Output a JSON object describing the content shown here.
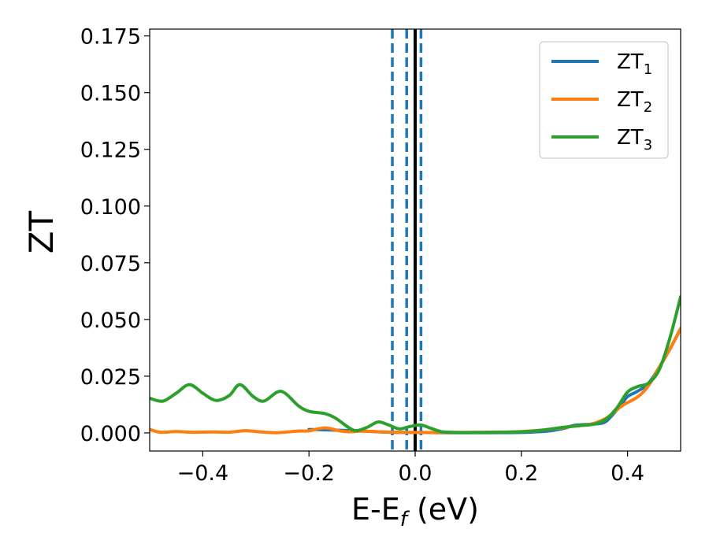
{
  "chart_data": {
    "type": "line",
    "title": "",
    "xlabel": {
      "main": "E-E",
      "sub": "f",
      "suffix": " (eV)"
    },
    "ylabel": "ZT",
    "xlim": [
      -0.5,
      0.5
    ],
    "ylim": [
      -0.008,
      0.178
    ],
    "grid": false,
    "legend_position": "top-right",
    "x_ticks": [
      -0.4,
      -0.2,
      0.0,
      0.2,
      0.4
    ],
    "x_tick_labels": [
      "−0.4",
      "−0.2",
      "0.0",
      "0.2",
      "0.4"
    ],
    "y_ticks": [
      0.0,
      0.025,
      0.05,
      0.075,
      0.1,
      0.125,
      0.15,
      0.175
    ],
    "y_tick_labels": [
      "0.000",
      "0.025",
      "0.050",
      "0.075",
      "0.100",
      "0.125",
      "0.150",
      "0.175"
    ],
    "vertical_lines": [
      {
        "x": -0.043,
        "style": "dashed",
        "color": "#1f77b4"
      },
      {
        "x": -0.016,
        "style": "dashed",
        "color": "#1f77b4"
      },
      {
        "x": 0.011,
        "style": "dashed",
        "color": "#1f77b4"
      },
      {
        "x": 0.0,
        "style": "solid",
        "color": "#000000"
      }
    ],
    "series": [
      {
        "name": "ZT",
        "name_sub": "1",
        "color": "#1f77b4",
        "points": [
          [
            -0.2,
            0.0015
          ],
          [
            -0.15,
            0.0012
          ],
          [
            -0.1,
            0.0008
          ],
          [
            -0.05,
            0.0003
          ],
          [
            0.0,
            0.0002
          ],
          [
            0.05,
            0.0001
          ],
          [
            0.1,
            0.0001
          ],
          [
            0.15,
            0.0001
          ],
          [
            0.2,
            0.0002
          ],
          [
            0.25,
            0.0008
          ],
          [
            0.28,
            0.002
          ],
          [
            0.3,
            0.0033
          ],
          [
            0.33,
            0.0038
          ],
          [
            0.355,
            0.0045
          ],
          [
            0.37,
            0.0075
          ],
          [
            0.39,
            0.013
          ],
          [
            0.4,
            0.016
          ],
          [
            0.42,
            0.0185
          ],
          [
            0.44,
            0.022
          ],
          [
            0.46,
            0.029
          ],
          [
            0.48,
            0.037
          ],
          [
            0.5,
            0.046
          ]
        ]
      },
      {
        "name": "ZT",
        "name_sub": "2",
        "color": "#ff7f0e",
        "points": [
          [
            -0.5,
            0.0015
          ],
          [
            -0.48,
            0.0003
          ],
          [
            -0.45,
            0.0006
          ],
          [
            -0.42,
            0.0003
          ],
          [
            -0.38,
            0.0004
          ],
          [
            -0.35,
            0.0003
          ],
          [
            -0.32,
            0.001
          ],
          [
            -0.29,
            0.0004
          ],
          [
            -0.26,
            0.0001
          ],
          [
            -0.22,
            0.0008
          ],
          [
            -0.2,
            0.0009
          ],
          [
            -0.17,
            0.0022
          ],
          [
            -0.14,
            0.0008
          ],
          [
            -0.12,
            0.0005
          ],
          [
            -0.1,
            0.0008
          ],
          [
            -0.07,
            0.0005
          ],
          [
            -0.04,
            0.0003
          ],
          [
            0.0,
            0.0002
          ],
          [
            0.05,
            0.0002
          ],
          [
            0.1,
            0.0002
          ],
          [
            0.15,
            0.0003
          ],
          [
            0.2,
            0.0006
          ],
          [
            0.25,
            0.0015
          ],
          [
            0.3,
            0.003
          ],
          [
            0.33,
            0.0038
          ],
          [
            0.36,
            0.0065
          ],
          [
            0.39,
            0.012
          ],
          [
            0.42,
            0.016
          ],
          [
            0.44,
            0.021
          ],
          [
            0.46,
            0.029
          ],
          [
            0.48,
            0.037
          ],
          [
            0.5,
            0.046
          ]
        ]
      },
      {
        "name": "ZT",
        "name_sub": "3",
        "color": "#2ca02c",
        "points": [
          [
            -0.5,
            0.0153
          ],
          [
            -0.475,
            0.014
          ],
          [
            -0.45,
            0.0175
          ],
          [
            -0.425,
            0.0213
          ],
          [
            -0.4,
            0.0175
          ],
          [
            -0.375,
            0.0143
          ],
          [
            -0.35,
            0.0165
          ],
          [
            -0.33,
            0.0213
          ],
          [
            -0.305,
            0.016
          ],
          [
            -0.285,
            0.014
          ],
          [
            -0.26,
            0.018
          ],
          [
            -0.245,
            0.0175
          ],
          [
            -0.22,
            0.012
          ],
          [
            -0.2,
            0.0095
          ],
          [
            -0.17,
            0.0085
          ],
          [
            -0.15,
            0.0065
          ],
          [
            -0.125,
            0.0023
          ],
          [
            -0.11,
            0.001
          ],
          [
            -0.09,
            0.0025
          ],
          [
            -0.07,
            0.0048
          ],
          [
            -0.05,
            0.0035
          ],
          [
            -0.03,
            0.0018
          ],
          [
            -0.01,
            0.0028
          ],
          [
            0.01,
            0.0035
          ],
          [
            0.03,
            0.002
          ],
          [
            0.05,
            0.0005
          ],
          [
            0.08,
            0.0002
          ],
          [
            0.12,
            0.0002
          ],
          [
            0.16,
            0.0003
          ],
          [
            0.2,
            0.0005
          ],
          [
            0.24,
            0.0012
          ],
          [
            0.28,
            0.0025
          ],
          [
            0.31,
            0.0032
          ],
          [
            0.34,
            0.004
          ],
          [
            0.36,
            0.0062
          ],
          [
            0.38,
            0.011
          ],
          [
            0.4,
            0.018
          ],
          [
            0.42,
            0.0205
          ],
          [
            0.44,
            0.022
          ],
          [
            0.46,
            0.028
          ],
          [
            0.48,
            0.042
          ],
          [
            0.5,
            0.06
          ]
        ]
      }
    ]
  }
}
